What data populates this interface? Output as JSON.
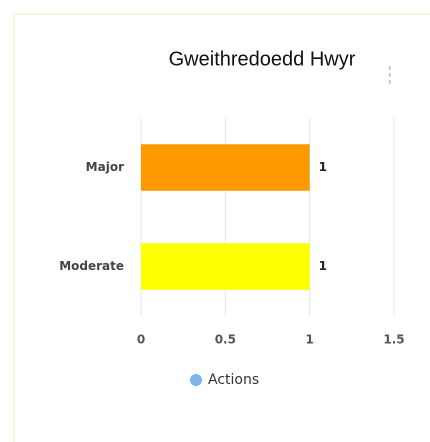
{
  "chart_data": {
    "type": "bar",
    "orientation": "horizontal",
    "title": "Gweithredoedd Hwyr",
    "categories": [
      "Major",
      "Moderate"
    ],
    "series": [
      {
        "name": "Actions",
        "color": "#7cb5ec",
        "values": [
          1,
          1
        ],
        "colors": [
          "#ff9900",
          "#ffff00"
        ]
      }
    ],
    "xlim": [
      0,
      1.5
    ],
    "xticks": [
      0,
      0.5,
      1,
      1.5
    ],
    "grid": true,
    "data_labels": true,
    "legend": "bottom"
  }
}
